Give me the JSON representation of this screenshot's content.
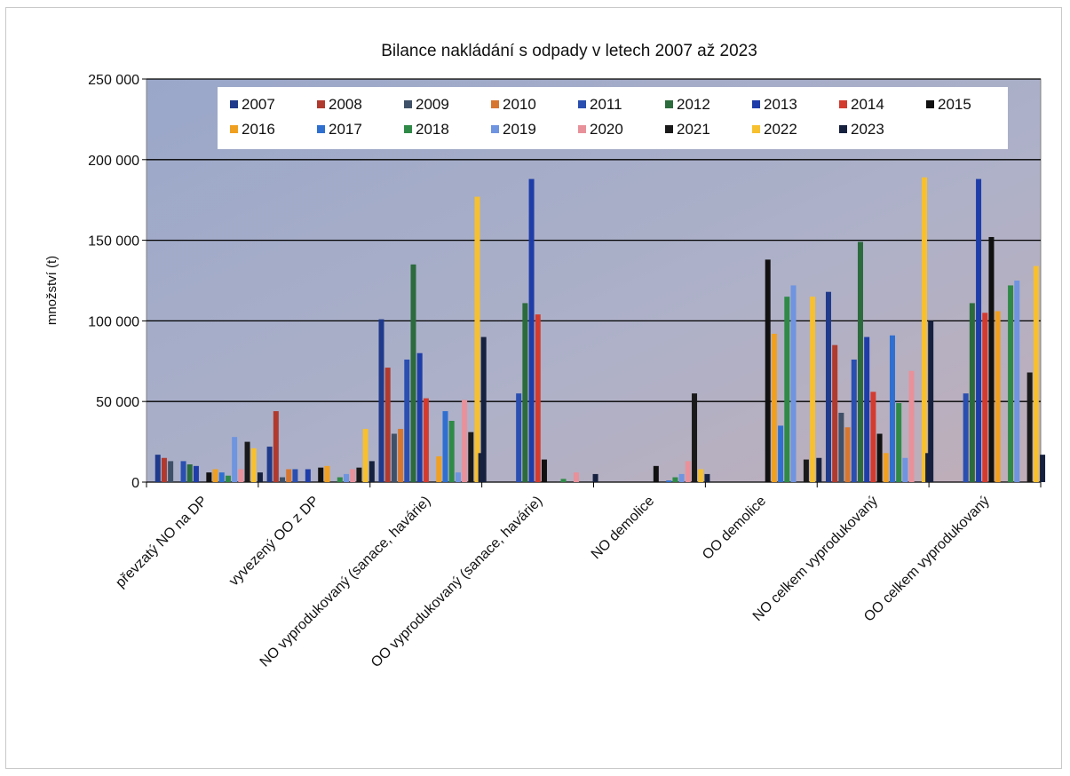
{
  "chart_data": {
    "type": "bar",
    "title": "Bilance nakládání s odpady v letech 2007 až 2023",
    "xlabel": "",
    "ylabel": "množství  (t)",
    "ylim": [
      0,
      250000
    ],
    "yticks": [
      0,
      50000,
      100000,
      150000,
      200000,
      250000
    ],
    "ytick_labels": [
      "0",
      "50 000",
      "100 000",
      "150 000",
      "200 000",
      "250 000"
    ],
    "grid": true,
    "legend_position": "top",
    "categories": [
      "převzatý NO na DP",
      "vyvezený OO z DP",
      "NO vyprodukovaný (sanace, havárie)",
      "OO vyprodukovaný (sanace, havárie)",
      "NO demolice",
      "OO demolice",
      "NO celkem vyprodukovaný",
      "OO celkem vyprodukovaný"
    ],
    "series": [
      {
        "name": "2007",
        "color": "#1f3a8a",
        "values": [
          17000,
          22000,
          101000,
          0,
          0,
          0,
          118000,
          0
        ]
      },
      {
        "name": "2008",
        "color": "#b03a2e",
        "values": [
          15000,
          44000,
          71000,
          0,
          0,
          0,
          85000,
          0
        ]
      },
      {
        "name": "2009",
        "color": "#3f5168",
        "values": [
          13000,
          3000,
          30000,
          0,
          0,
          0,
          43000,
          0
        ]
      },
      {
        "name": "2010",
        "color": "#d7772f",
        "values": [
          0,
          8000,
          33000,
          0,
          0,
          0,
          34000,
          0
        ]
      },
      {
        "name": "2011",
        "color": "#2a4fb0",
        "values": [
          13000,
          8000,
          76000,
          55000,
          0,
          0,
          76000,
          55000
        ]
      },
      {
        "name": "2012",
        "color": "#2b6b3c",
        "values": [
          11000,
          0,
          135000,
          111000,
          0,
          0,
          149000,
          111000
        ]
      },
      {
        "name": "2013",
        "color": "#1f3da8",
        "values": [
          10000,
          8000,
          80000,
          188000,
          0,
          0,
          90000,
          188000
        ]
      },
      {
        "name": "2014",
        "color": "#d43b2f",
        "values": [
          0,
          0,
          52000,
          104000,
          0,
          0,
          56000,
          105000
        ]
      },
      {
        "name": "2015",
        "color": "#111111",
        "values": [
          6000,
          9000,
          0,
          14000,
          10000,
          138000,
          30000,
          152000
        ]
      },
      {
        "name": "2016",
        "color": "#f0a020",
        "values": [
          8000,
          10000,
          16000,
          0,
          0,
          92000,
          18000,
          106000
        ]
      },
      {
        "name": "2017",
        "color": "#2f6fd0",
        "values": [
          6000,
          0,
          44000,
          0,
          1000,
          35000,
          91000,
          0
        ]
      },
      {
        "name": "2018",
        "color": "#2f8a47",
        "values": [
          4000,
          3000,
          38000,
          2000,
          3000,
          115000,
          49000,
          122000
        ]
      },
      {
        "name": "2019",
        "color": "#6f94e0",
        "values": [
          28000,
          5000,
          6000,
          0,
          5000,
          122000,
          15000,
          125000
        ]
      },
      {
        "name": "2020",
        "color": "#e8919a",
        "values": [
          8000,
          8000,
          51000,
          6000,
          13000,
          0,
          69000,
          0
        ]
      },
      {
        "name": "2021",
        "color": "#1a1a1a",
        "values": [
          25000,
          9000,
          31000,
          0,
          55000,
          14000,
          0,
          68000
        ]
      },
      {
        "name": "2022",
        "color": "#f6c02f",
        "values": [
          21000,
          33000,
          177000,
          0,
          8000,
          115000,
          189000,
          134000
        ]
      },
      {
        "name": "2023",
        "color": "#16213f",
        "values": [
          6000,
          13000,
          90000,
          5000,
          5000,
          15000,
          100000,
          17000
        ]
      }
    ],
    "extra_bars": [
      {
        "category_index": 3,
        "offset": -0.45,
        "color": "#16213f",
        "value": 18000
      },
      {
        "category_index": 7,
        "offset": -0.45,
        "color": "#16213f",
        "value": 18000
      }
    ]
  }
}
